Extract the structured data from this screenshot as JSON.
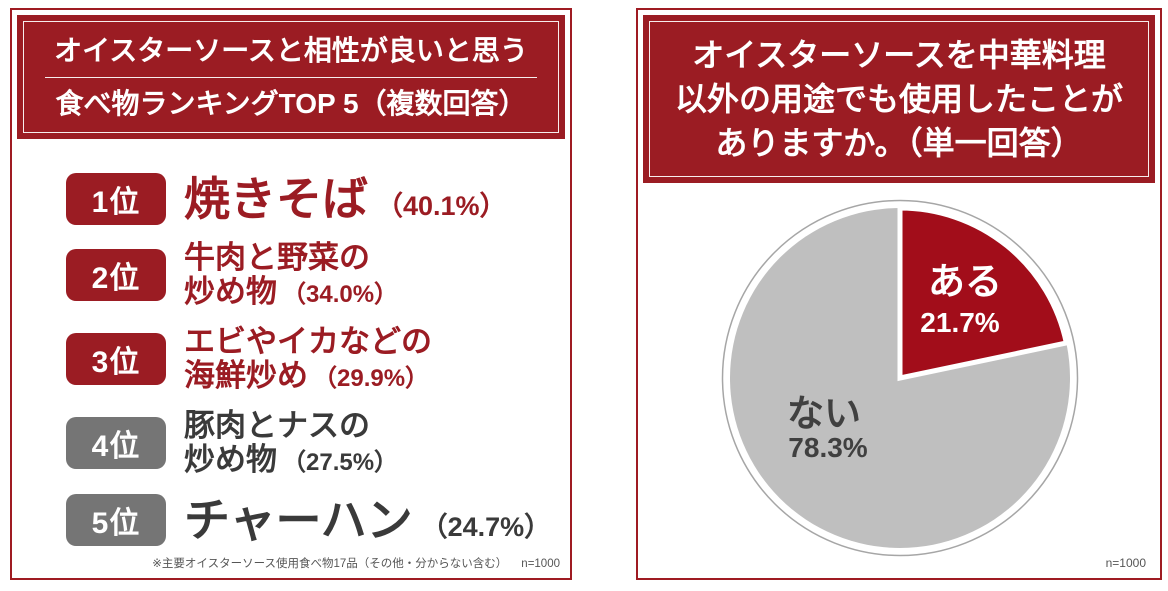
{
  "colors": {
    "brand_red": "#9b1c23",
    "pie_red": "#a20d1a",
    "pie_gray": "#bfbfbf",
    "badge_gray": "#757575",
    "dark_text": "#3a3a3a",
    "panel_border": "#9f1b22",
    "note_gray": "#555555",
    "pie_outline": "#a6a6a6"
  },
  "left_panel": {
    "title_line1": "オイスターソースと相性が良いと思う",
    "title_line2": "食べ物ランキングTOP 5（複数回答）",
    "rankings": [
      {
        "badge": "1位",
        "theme": "red",
        "lines": [
          {
            "name": "焼きそば",
            "size": "xl",
            "percent": "（40.1%）"
          }
        ]
      },
      {
        "badge": "2位",
        "theme": "red",
        "lines": [
          {
            "name": "牛肉と野菜の"
          },
          {
            "name": "炒め物",
            "percent": "（34.0%）"
          }
        ]
      },
      {
        "badge": "3位",
        "theme": "red",
        "lines": [
          {
            "name": "エビやイカなどの"
          },
          {
            "name": "海鮮炒め",
            "percent": "（29.9%）"
          }
        ]
      },
      {
        "badge": "4位",
        "theme": "gray",
        "lines": [
          {
            "name": "豚肉とナスの"
          },
          {
            "name": "炒め物",
            "percent": "（27.5%）"
          }
        ]
      },
      {
        "badge": "5位",
        "theme": "gray",
        "lines": [
          {
            "name": "チャーハン",
            "size": "xl",
            "percent": "（24.7%）"
          }
        ]
      }
    ],
    "footnote": "※主要オイスターソース使用食べ物17品（その他・分からない含む）",
    "sample": "n=1000"
  },
  "right_panel": {
    "title_line1": "オイスターソースを中華料理",
    "title_line2": "以外の用途でも使用したことが",
    "title_line3": "ありますか。（単一回答）",
    "slices": [
      {
        "label": "ある",
        "percent_label": "21.7%"
      },
      {
        "label": "ない",
        "percent_label": "78.3%"
      }
    ],
    "sample": "n=1000"
  },
  "chart_data": [
    {
      "type": "bar",
      "title": "オイスターソースと相性が良いと思う食べ物ランキングTOP 5（複数回答）",
      "categories": [
        "焼きそば",
        "牛肉と野菜の炒め物",
        "エビやイカなどの海鮮炒め",
        "豚肉とナスの炒め物",
        "チャーハン"
      ],
      "values": [
        40.1,
        34.0,
        29.9,
        27.5,
        24.7
      ],
      "unit": "%",
      "note": "※主要オイスターソース使用食べ物17品（その他・分からない含む）",
      "n": "n=1000"
    },
    {
      "type": "pie",
      "title": "オイスターソースを中華料理以外の用途でも使用したことがありますか。（単一回答）",
      "labels": [
        "ある",
        "ない"
      ],
      "values": [
        21.7,
        78.3
      ],
      "colors": [
        "#a20d1a",
        "#bfbfbf"
      ],
      "start_angle_deg": 0,
      "direction": "clockwise",
      "legend_position": "inside",
      "n": "n=1000"
    }
  ]
}
